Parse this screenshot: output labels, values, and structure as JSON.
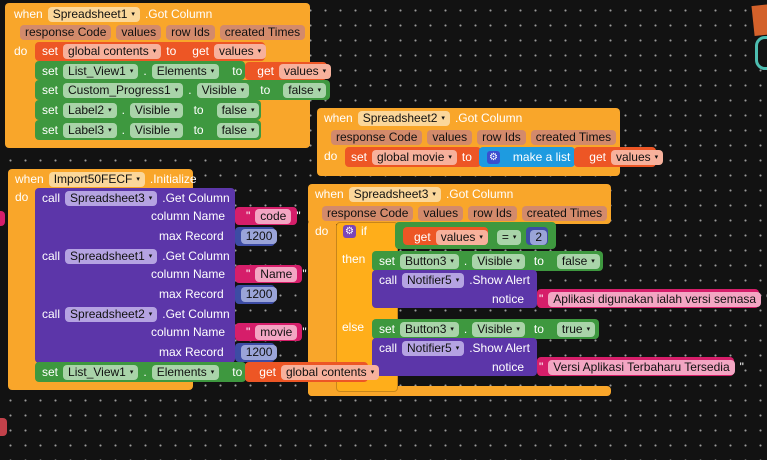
{
  "block_a": {
    "when": "when",
    "component": "Spreadsheet1",
    "event": ".Got Column",
    "params": [
      "response Code",
      "values",
      "row Ids",
      "created Times"
    ],
    "do": "do",
    "s1": {
      "set": "set",
      "var": "global contents",
      "to": "to",
      "get": "get",
      "val": "values"
    },
    "s2": {
      "set": "set",
      "comp": "List_View1",
      "prop": "Elements",
      "to": "to",
      "get": "get",
      "val": "values"
    },
    "s3": {
      "set": "set",
      "comp": "Custom_Progress1",
      "prop": "Visible",
      "to": "to",
      "val": "false"
    },
    "s4": {
      "set": "set",
      "comp": "Label2",
      "prop": "Visible",
      "to": "to",
      "val": "false"
    },
    "s5": {
      "set": "set",
      "comp": "Label3",
      "prop": "Visible",
      "to": "to",
      "val": "false"
    }
  },
  "block_b": {
    "when": "when",
    "component": "Spreadsheet2",
    "event": ".Got Column",
    "params": [
      "response Code",
      "values",
      "row Ids",
      "created Times"
    ],
    "do": "do",
    "set": "set",
    "var": "global movie",
    "to": "to",
    "make_list": "make a list",
    "get": "get",
    "val": "values"
  },
  "block_c": {
    "when": "when",
    "component": "Spreadsheet3",
    "event": ".Got Column",
    "params": [
      "response Code",
      "values",
      "row Ids",
      "created Times"
    ],
    "do": "do",
    "if": "if",
    "get": "get",
    "val": "values",
    "op": "=",
    "num": "2",
    "then": "then",
    "else": "else",
    "then_set": {
      "set": "set",
      "comp": "Button3",
      "prop": "Visible",
      "to": "to",
      "val": "false"
    },
    "then_call": {
      "call": "call",
      "comp": "Notifier5",
      "method": ".Show Alert",
      "arg": "notice",
      "text": "Aplikasi digunakan ialah versi semasa"
    },
    "else_set": {
      "set": "set",
      "comp": "Button3",
      "prop": "Visible",
      "to": "to",
      "val": "true"
    },
    "else_call": {
      "call": "call",
      "comp": "Notifier5",
      "method": ".Show Alert",
      "arg": "notice",
      "text": "Versi Aplikasi Terbaharu Tersedia"
    }
  },
  "block_d": {
    "when": "when",
    "component": "Import50FECF",
    "event": ".Initialize",
    "do": "do",
    "calls": [
      {
        "call": "call",
        "comp": "Spreadsheet3",
        "method": ".Get Column",
        "arg1": "column Name",
        "col": "code",
        "arg2": "max Record",
        "max": "1200"
      },
      {
        "call": "call",
        "comp": "Spreadsheet1",
        "method": ".Get Column",
        "arg1": "column Name",
        "col": "Name",
        "arg2": "max Record",
        "max": "1200"
      },
      {
        "call": "call",
        "comp": "Spreadsheet2",
        "method": ".Get Column",
        "arg1": "column Name",
        "col": "movie",
        "arg2": "max Record",
        "max": "1200"
      }
    ],
    "set": {
      "set": "set",
      "comp": "List_View1",
      "prop": "Elements",
      "to": "to",
      "get": "get",
      "var": "global contents"
    }
  },
  "quote": "\"",
  "dot": ".",
  "dropdown_glyph": "▾",
  "colors": {
    "event": "#f9a62a",
    "variable": "#ed5625",
    "component_set": "#3e983f",
    "component_call": "#5c36a9",
    "text": "#d61e6a",
    "math": "#3d4ca4",
    "list": "#1e9be0",
    "control": "#ffae1a"
  }
}
